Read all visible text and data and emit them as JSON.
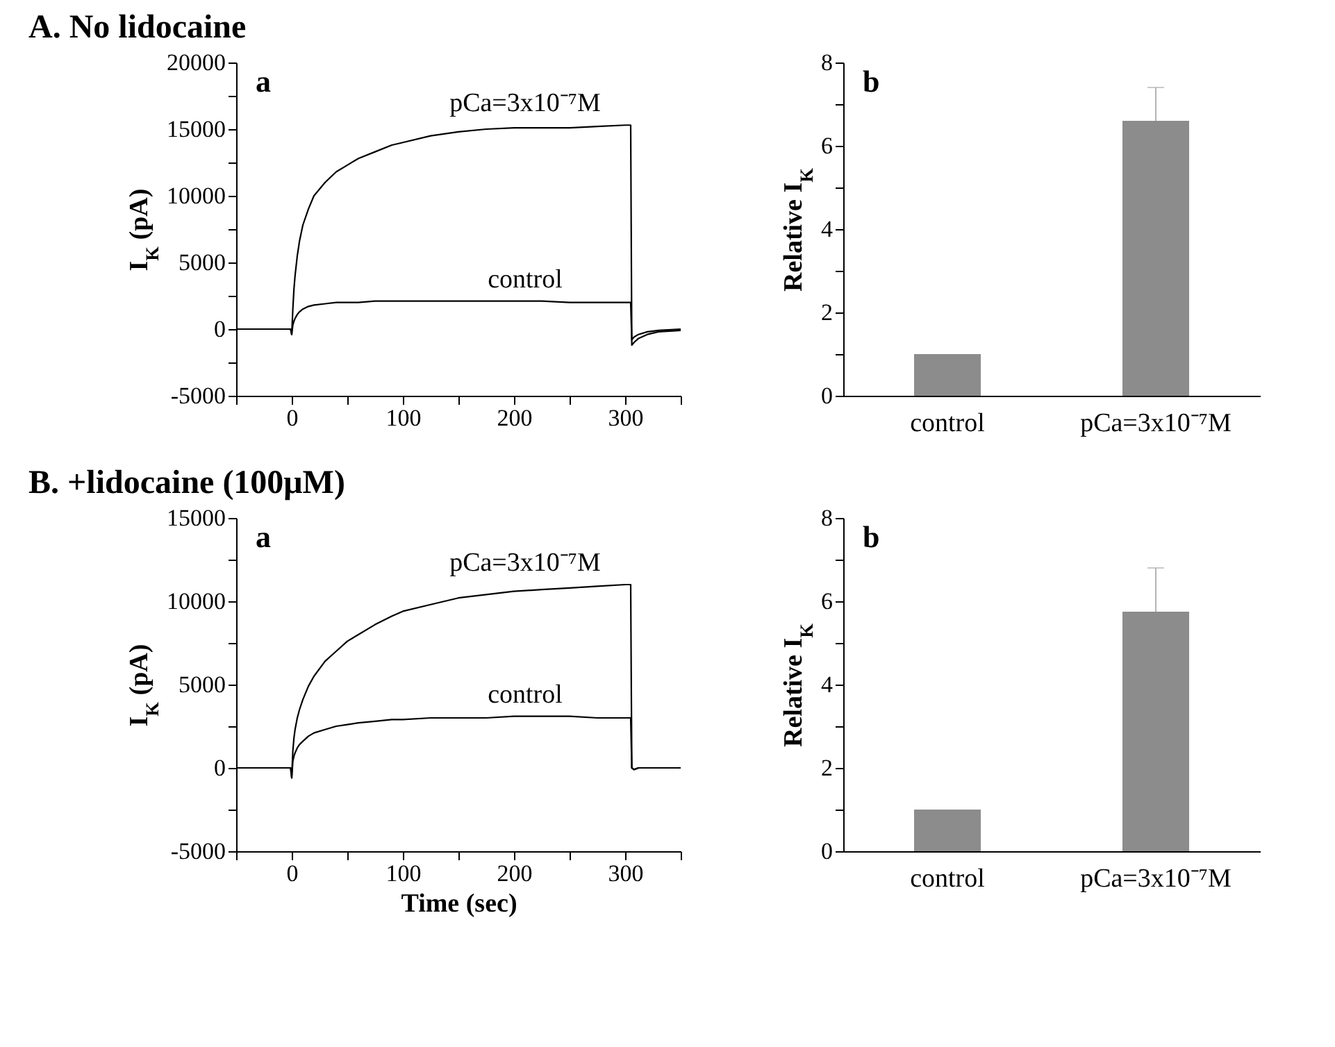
{
  "chart_data": [
    {
      "type": "line",
      "title": "A. No lidocaine",
      "ylabel": "I$_{K}$ (pA)",
      "annotations": [
        "a"
      ],
      "x": [
        -50,
        -25,
        -1,
        0,
        1,
        2,
        3,
        5,
        7,
        10,
        15,
        20,
        30,
        40,
        50,
        60,
        75,
        90,
        100,
        125,
        150,
        175,
        200,
        225,
        250,
        275,
        300,
        305,
        306,
        308,
        312,
        320,
        330,
        350
      ],
      "series": [
        {
          "name": "pCa=3x10⁻⁷M",
          "color": "#000000",
          "values": [
            0,
            0,
            0,
            -400,
            1500,
            3000,
            4000,
            5500,
            6600,
            7800,
            9000,
            10000,
            11000,
            11800,
            12300,
            12800,
            13300,
            13800,
            14000,
            14500,
            14800,
            15000,
            15100,
            15100,
            15100,
            15200,
            15300,
            15300,
            -1200,
            -1000,
            -700,
            -400,
            -200,
            -100
          ]
        },
        {
          "name": "control",
          "color": "#000000",
          "values": [
            0,
            0,
            0,
            -400,
            300,
            600,
            800,
            1100,
            1300,
            1500,
            1700,
            1800,
            1900,
            2000,
            2000,
            2000,
            2100,
            2100,
            2100,
            2100,
            2100,
            2100,
            2100,
            2100,
            2000,
            2000,
            2000,
            2000,
            -800,
            -600,
            -400,
            -200,
            -100,
            0
          ]
        }
      ],
      "xlim": [
        -50,
        350
      ],
      "xticks": [
        {
          "value": -50,
          "label": null
        },
        0,
        {
          "value": 50,
          "label": null
        },
        100,
        {
          "value": 150,
          "label": null
        },
        200,
        {
          "value": 250,
          "label": null
        },
        300,
        {
          "value": 350,
          "label": null
        }
      ],
      "ylim": [
        -5000,
        20000
      ],
      "yticks": [
        -5000,
        {
          "value": -2500,
          "label": null
        },
        0,
        {
          "value": 2500,
          "label": null
        },
        5000,
        {
          "value": 7500,
          "label": null
        },
        10000,
        {
          "value": 12500,
          "label": null
        },
        15000,
        {
          "value": 17500,
          "label": null
        },
        20000
      ],
      "grid": false,
      "legend": false
    },
    {
      "type": "bar",
      "ylabel": "Relative I$_{K}$",
      "annotations": [
        "b"
      ],
      "categories": [
        "control",
        "pCa=3x10⁻⁷M"
      ],
      "values": [
        1,
        6.6
      ],
      "errors": [
        null,
        [
          6.6,
          7.4
        ]
      ],
      "color": "#8c8c8c",
      "ylim": [
        0,
        8
      ],
      "yticks": [
        0,
        {
          "value": 1,
          "label": null
        },
        2,
        {
          "value": 3,
          "label": null
        },
        4,
        {
          "value": 5,
          "label": null
        },
        6,
        {
          "value": 7,
          "label": null
        },
        8
      ],
      "grid": false,
      "legend": false
    },
    {
      "type": "line",
      "title": "B. +lidocaine (100μM)",
      "xlabel": "Time (sec)",
      "ylabel": "I$_{K}$ (pA)",
      "annotations": [
        "a"
      ],
      "x": [
        -50,
        -25,
        -1,
        0,
        1,
        2,
        3,
        5,
        7,
        10,
        15,
        20,
        30,
        40,
        50,
        60,
        75,
        90,
        100,
        125,
        150,
        175,
        200,
        225,
        250,
        275,
        300,
        305,
        306,
        308,
        312,
        320,
        330,
        350
      ],
      "series": [
        {
          "name": "pCa=3x10⁻⁷M",
          "color": "#000000",
          "values": [
            0,
            0,
            0,
            -600,
            1000,
            1800,
            2300,
            3000,
            3500,
            4100,
            4900,
            5500,
            6400,
            7000,
            7600,
            8000,
            8600,
            9100,
            9400,
            9800,
            10200,
            10400,
            10600,
            10700,
            10800,
            10900,
            11000,
            11000,
            0,
            -100,
            0,
            0,
            0,
            0
          ]
        },
        {
          "name": "control",
          "color": "#000000",
          "values": [
            0,
            0,
            0,
            -600,
            400,
            700,
            900,
            1200,
            1400,
            1600,
            1900,
            2100,
            2300,
            2500,
            2600,
            2700,
            2800,
            2900,
            2900,
            3000,
            3000,
            3000,
            3100,
            3100,
            3100,
            3000,
            3000,
            3000,
            0,
            -100,
            0,
            0,
            0,
            0
          ]
        }
      ],
      "xlim": [
        -50,
        350
      ],
      "xticks": [
        {
          "value": -50,
          "label": null
        },
        0,
        {
          "value": 50,
          "label": null
        },
        100,
        {
          "value": 150,
          "label": null
        },
        200,
        {
          "value": 250,
          "label": null
        },
        300,
        {
          "value": 350,
          "label": null
        }
      ],
      "ylim": [
        -5000,
        15000
      ],
      "yticks": [
        -5000,
        {
          "value": -2500,
          "label": null
        },
        0,
        {
          "value": 2500,
          "label": null
        },
        5000,
        {
          "value": 7500,
          "label": null
        },
        10000,
        {
          "value": 12500,
          "label": null
        },
        15000
      ],
      "grid": false,
      "legend": false
    },
    {
      "type": "bar",
      "ylabel": "Relative I$_{K}$",
      "annotations": [
        "b"
      ],
      "categories": [
        "control",
        "pCa=3x10⁻⁷M"
      ],
      "values": [
        1,
        5.75
      ],
      "errors": [
        null,
        [
          5.75,
          6.8
        ]
      ],
      "color": "#8c8c8c",
      "ylim": [
        0,
        8
      ],
      "yticks": [
        0,
        {
          "value": 1,
          "label": null
        },
        2,
        {
          "value": 3,
          "label": null
        },
        4,
        {
          "value": 5,
          "label": null
        },
        6,
        {
          "value": 7,
          "label": null
        },
        8
      ],
      "grid": false,
      "legend": false
    }
  ]
}
